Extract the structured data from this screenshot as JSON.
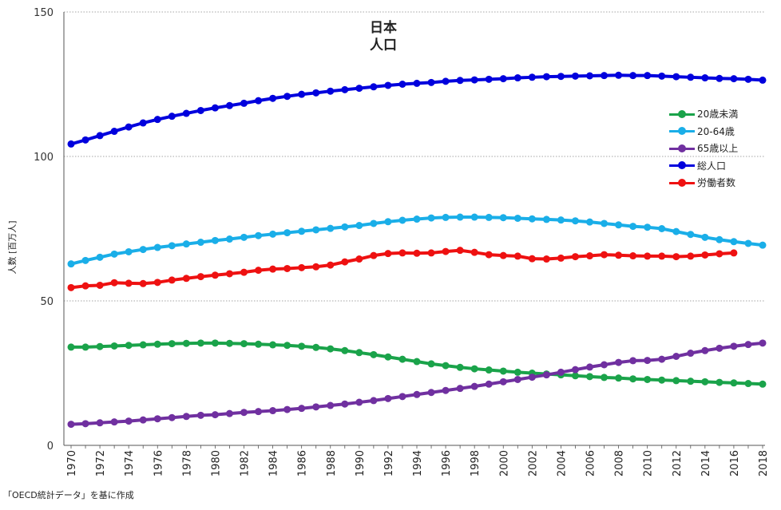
{
  "chart_data": {
    "type": "line",
    "title_lines": [
      "日本",
      "人口"
    ],
    "ylabel": "人数 [百万人]",
    "ylim": [
      0,
      150
    ],
    "yticks": [
      0,
      50,
      100,
      150
    ],
    "xlim": [
      1970,
      2018
    ],
    "xticks": [
      "1970",
      "1972",
      "1974",
      "1976",
      "1978",
      "1980",
      "1982",
      "1984",
      "1986",
      "1988",
      "1990",
      "1992",
      "1994",
      "1996",
      "1998",
      "2000",
      "2002",
      "2004",
      "2006",
      "2008",
      "2010",
      "2012",
      "2014",
      "2016",
      "2018"
    ],
    "grid": "horizontal-dotted",
    "legend_position": "right",
    "source": "「OECD統計データ」を基に作成",
    "series": [
      {
        "name": "20歳未満",
        "color": "#1aa34a",
        "start": 1970,
        "values": [
          34.0,
          34.0,
          34.2,
          34.4,
          34.6,
          34.8,
          35.0,
          35.2,
          35.3,
          35.4,
          35.4,
          35.3,
          35.2,
          35.0,
          34.8,
          34.6,
          34.3,
          33.9,
          33.4,
          32.8,
          32.1,
          31.4,
          30.6,
          29.8,
          29.0,
          28.2,
          27.6,
          27.0,
          26.5,
          26.1,
          25.7,
          25.3,
          25.0,
          24.7,
          24.4,
          24.1,
          23.8,
          23.5,
          23.3,
          23.0,
          22.8,
          22.6,
          22.4,
          22.2,
          22.0,
          21.8,
          21.6,
          21.4,
          21.2
        ]
      },
      {
        "name": "20-64歳",
        "color": "#1aaee8",
        "start": 1970,
        "values": [
          62.8,
          64.0,
          65.1,
          66.2,
          67.0,
          67.8,
          68.5,
          69.1,
          69.7,
          70.3,
          70.9,
          71.4,
          72.0,
          72.6,
          73.1,
          73.6,
          74.1,
          74.6,
          75.1,
          75.6,
          76.1,
          76.8,
          77.4,
          77.9,
          78.3,
          78.7,
          78.9,
          79.0,
          79.0,
          78.9,
          78.8,
          78.6,
          78.4,
          78.2,
          78.0,
          77.7,
          77.3,
          76.8,
          76.3,
          75.8,
          75.5,
          75.0,
          74.0,
          73.0,
          72.0,
          71.2,
          70.5,
          69.9,
          69.3
        ]
      },
      {
        "name": "65歳以上",
        "color": "#7030a0",
        "start": 1970,
        "values": [
          7.3,
          7.5,
          7.8,
          8.1,
          8.4,
          8.8,
          9.2,
          9.6,
          10.0,
          10.4,
          10.6,
          11.0,
          11.4,
          11.7,
          12.0,
          12.4,
          12.8,
          13.3,
          13.8,
          14.3,
          14.9,
          15.5,
          16.2,
          16.9,
          17.6,
          18.3,
          19.0,
          19.7,
          20.4,
          21.2,
          22.0,
          22.8,
          23.6,
          24.4,
          25.3,
          26.2,
          27.1,
          27.9,
          28.7,
          29.3,
          29.4,
          29.8,
          30.8,
          31.9,
          32.8,
          33.6,
          34.3,
          34.9,
          35.4
        ]
      },
      {
        "name": "総人口",
        "color": "#0000dd",
        "start": 1970,
        "values": [
          104.3,
          105.7,
          107.2,
          108.7,
          110.2,
          111.6,
          112.8,
          113.9,
          114.9,
          115.9,
          116.8,
          117.6,
          118.4,
          119.3,
          120.1,
          120.8,
          121.5,
          122.0,
          122.6,
          123.1,
          123.6,
          124.1,
          124.6,
          125.0,
          125.3,
          125.6,
          126.0,
          126.3,
          126.5,
          126.7,
          126.9,
          127.2,
          127.4,
          127.6,
          127.7,
          127.8,
          127.9,
          128.0,
          128.1,
          128.0,
          128.0,
          127.8,
          127.6,
          127.4,
          127.2,
          127.0,
          126.9,
          126.7,
          126.4
        ]
      },
      {
        "name": "労働者数",
        "color": "#ee1111",
        "start": 1970,
        "values": [
          54.6,
          55.2,
          55.4,
          56.3,
          56.1,
          56.0,
          56.4,
          57.2,
          57.8,
          58.4,
          58.9,
          59.4,
          59.9,
          60.6,
          61.0,
          61.2,
          61.5,
          61.8,
          62.4,
          63.5,
          64.5,
          65.7,
          66.4,
          66.6,
          66.5,
          66.6,
          67.1,
          67.5,
          66.8,
          66.0,
          65.7,
          65.5,
          64.6,
          64.5,
          64.8,
          65.3,
          65.6,
          66.0,
          65.8,
          65.6,
          65.5,
          65.5,
          65.3,
          65.5,
          65.9,
          66.3,
          66.6
        ]
      }
    ]
  }
}
